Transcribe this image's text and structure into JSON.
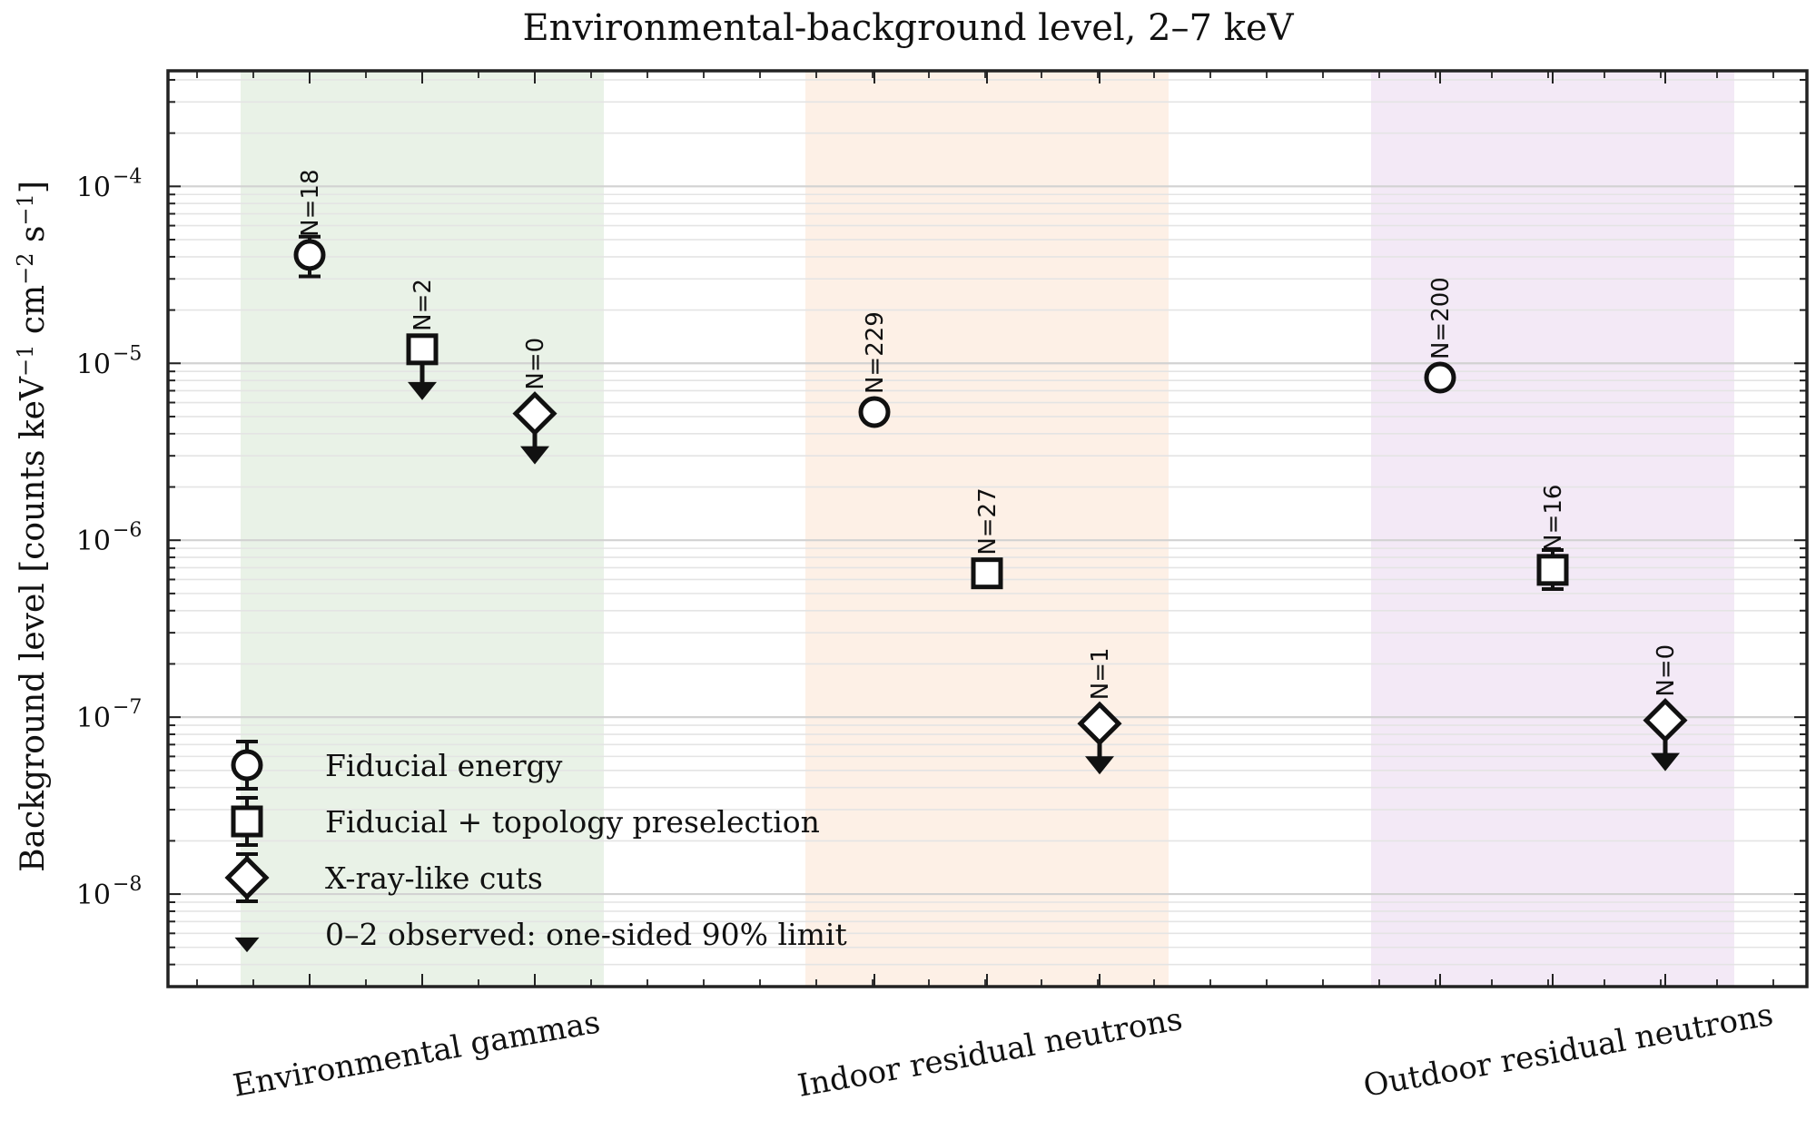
{
  "chart_data": {
    "type": "scatter",
    "title": "Environmental-background level, 2–7 keV",
    "ylabel": "Background level [counts keV⁻¹ cm⁻² s⁻¹]",
    "ylabel_parts": [
      "Background level [counts keV",
      "−1",
      " cm",
      "−2",
      " s",
      "−1",
      "]"
    ],
    "yscale": "log",
    "ylim": [
      3e-09,
      0.00045
    ],
    "y_ticks": [
      {
        "value": 1e-08,
        "base": "10",
        "exp": "−8"
      },
      {
        "value": 1e-07,
        "base": "10",
        "exp": "−7"
      },
      {
        "value": 1e-06,
        "base": "10",
        "exp": "−6"
      },
      {
        "value": 1e-05,
        "base": "10",
        "exp": "−5"
      },
      {
        "value": 0.0001,
        "base": "10",
        "exp": "−4"
      }
    ],
    "grid": true,
    "categories": [
      "Environmental gammas",
      "Indoor residual neutrons",
      "Outdoor residual neutrons"
    ],
    "band_colors": [
      "#e9f2e7",
      "#fdf0e6",
      "#f3e9f6"
    ],
    "series": [
      {
        "name": "Fiducial energy",
        "marker": "circle",
        "values": [
          4.1e-05,
          5.3e-06,
          8.3e-06
        ],
        "err_low": [
          3.1e-05,
          5e-06,
          7.8e-06
        ],
        "err_high": [
          5.2e-05,
          5.6e-06,
          8.8e-06
        ],
        "counts": [
          "N=18",
          "N=229",
          "N=200"
        ],
        "upper_limit": [
          false,
          false,
          false
        ]
      },
      {
        "name": "Fiducial + topology preselection",
        "marker": "square",
        "values": [
          1.2e-05,
          6.5e-07,
          6.8e-07
        ],
        "err_low": [
          1.2e-05,
          5.8e-07,
          5.3e-07
        ],
        "err_high": [
          1.2e-05,
          7.2e-07,
          8.8e-07
        ],
        "counts": [
          "N=2",
          "N=27",
          "N=16"
        ],
        "upper_limit": [
          true,
          false,
          false
        ]
      },
      {
        "name": "X-ray-like cuts",
        "marker": "diamond",
        "values": [
          5.2e-06,
          9.2e-08,
          9.6e-08
        ],
        "err_low": [
          5.2e-06,
          9.2e-08,
          9.6e-08
        ],
        "err_high": [
          5.2e-06,
          9.2e-08,
          9.6e-08
        ],
        "counts": [
          "N=0",
          "N=1",
          "N=0"
        ],
        "upper_limit": [
          true,
          true,
          true
        ]
      }
    ],
    "legend": {
      "placement": "lower-left",
      "entries": [
        {
          "marker": "circle",
          "label": "Fiducial energy"
        },
        {
          "marker": "square",
          "label": "Fiducial + topology preselection"
        },
        {
          "marker": "diamond",
          "label": "X-ray-like cuts"
        },
        {
          "marker": "triangle-down",
          "label": "0–2 observed: one-sided 90% limit"
        }
      ]
    }
  }
}
